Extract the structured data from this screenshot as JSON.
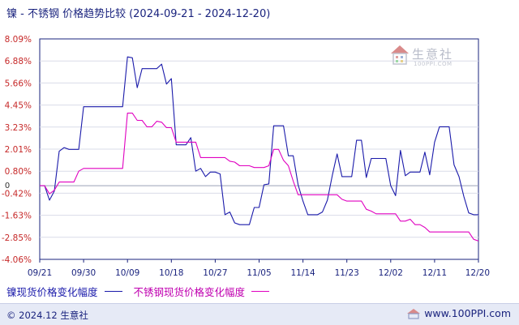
{
  "title": {
    "main": "镍 - 不锈钢 价格趋势比较",
    "range": "(2024-09-21 - 2024-12-20)"
  },
  "legend": [
    {
      "label": "镍现货价格变化幅度",
      "color": "#1a1aaa"
    },
    {
      "label": "不锈钢现货价格变化幅度",
      "color": "#e000c0"
    }
  ],
  "footer": {
    "copyright": "© 2024.12 生意社",
    "site": "www.100PPI.com"
  },
  "watermark": {
    "text": "生意社",
    "sub": "100PPI.COM"
  },
  "chart_data": {
    "type": "line",
    "x": [
      "2024-09-21",
      "2024-09-22",
      "2024-09-23",
      "2024-09-24",
      "2024-09-25",
      "2024-09-26",
      "2024-09-27",
      "2024-09-28",
      "2024-09-29",
      "2024-09-30",
      "2024-10-01",
      "2024-10-02",
      "2024-10-03",
      "2024-10-04",
      "2024-10-05",
      "2024-10-06",
      "2024-10-07",
      "2024-10-08",
      "2024-10-09",
      "2024-10-10",
      "2024-10-11",
      "2024-10-12",
      "2024-10-13",
      "2024-10-14",
      "2024-10-15",
      "2024-10-16",
      "2024-10-17",
      "2024-10-18",
      "2024-10-19",
      "2024-10-20",
      "2024-10-21",
      "2024-10-22",
      "2024-10-23",
      "2024-10-24",
      "2024-10-25",
      "2024-10-26",
      "2024-10-27",
      "2024-10-28",
      "2024-10-29",
      "2024-10-30",
      "2024-10-31",
      "2024-11-01",
      "2024-11-02",
      "2024-11-03",
      "2024-11-04",
      "2024-11-05",
      "2024-11-06",
      "2024-11-07",
      "2024-11-08",
      "2024-11-09",
      "2024-11-10",
      "2024-11-11",
      "2024-11-12",
      "2024-11-13",
      "2024-11-14",
      "2024-11-15",
      "2024-11-16",
      "2024-11-17",
      "2024-11-18",
      "2024-11-19",
      "2024-11-20",
      "2024-11-21",
      "2024-11-22",
      "2024-11-23",
      "2024-11-24",
      "2024-11-25",
      "2024-11-26",
      "2024-11-27",
      "2024-11-28",
      "2024-11-29",
      "2024-11-30",
      "2024-12-01",
      "2024-12-02",
      "2024-12-03",
      "2024-12-04",
      "2024-12-05",
      "2024-12-06",
      "2024-12-07",
      "2024-12-08",
      "2024-12-09",
      "2024-12-10",
      "2024-12-11",
      "2024-12-12",
      "2024-12-13",
      "2024-12-14",
      "2024-12-15",
      "2024-12-16",
      "2024-12-17",
      "2024-12-18",
      "2024-12-19",
      "2024-12-20"
    ],
    "series": [
      {
        "name": "镍现货价格变化幅度",
        "color": "#1a1aaa",
        "values": [
          0.0,
          0.0,
          -0.8,
          -0.3,
          1.9,
          2.1,
          2.0,
          2.0,
          2.0,
          4.35,
          4.35,
          4.35,
          4.35,
          4.35,
          4.35,
          4.35,
          4.35,
          4.35,
          7.1,
          7.05,
          5.4,
          6.45,
          6.45,
          6.45,
          6.45,
          6.7,
          5.6,
          5.9,
          2.25,
          2.25,
          2.25,
          2.65,
          0.8,
          0.95,
          0.5,
          0.75,
          0.75,
          0.65,
          -1.6,
          -1.45,
          -2.05,
          -2.15,
          -2.15,
          -2.15,
          -1.2,
          -1.2,
          0.05,
          0.1,
          3.3,
          3.3,
          3.3,
          1.65,
          1.65,
          0.05,
          -0.85,
          -1.6,
          -1.6,
          -1.6,
          -1.45,
          -0.8,
          0.55,
          1.75,
          0.5,
          0.5,
          0.5,
          2.5,
          2.5,
          0.45,
          1.5,
          1.5,
          1.5,
          1.5,
          0.0,
          -0.55,
          1.95,
          0.55,
          0.75,
          0.75,
          0.75,
          1.85,
          0.6,
          2.4,
          3.25,
          3.25,
          3.25,
          1.15,
          0.5,
          -0.6,
          -1.5,
          -1.6,
          -1.6
        ]
      },
      {
        "name": "不锈钢现货价格变化幅度",
        "color": "#e000c0",
        "values": [
          0.0,
          0.0,
          -0.45,
          -0.25,
          0.2,
          0.2,
          0.2,
          0.2,
          0.8,
          0.95,
          0.95,
          0.95,
          0.95,
          0.95,
          0.95,
          0.95,
          0.95,
          0.95,
          4.0,
          4.0,
          3.6,
          3.6,
          3.25,
          3.25,
          3.55,
          3.5,
          3.2,
          3.2,
          2.4,
          2.4,
          2.4,
          2.4,
          2.4,
          1.55,
          1.55,
          1.55,
          1.55,
          1.55,
          1.55,
          1.35,
          1.3,
          1.1,
          1.1,
          1.1,
          1.0,
          1.0,
          1.0,
          1.1,
          2.0,
          2.0,
          1.4,
          1.1,
          0.25,
          -0.5,
          -0.5,
          -0.5,
          -0.5,
          -0.5,
          -0.5,
          -0.5,
          -0.5,
          -0.5,
          -0.75,
          -0.85,
          -0.85,
          -0.85,
          -0.85,
          -1.3,
          -1.4,
          -1.55,
          -1.55,
          -1.55,
          -1.55,
          -1.55,
          -1.95,
          -1.95,
          -1.85,
          -2.15,
          -2.15,
          -2.3,
          -2.55,
          -2.55,
          -2.55,
          -2.55,
          -2.55,
          -2.55,
          -2.55,
          -2.55,
          -2.55,
          -2.95,
          -3.05
        ]
      }
    ],
    "x_ticks": [
      "09/21",
      "09/30",
      "10/09",
      "10/18",
      "10/27",
      "11/05",
      "11/14",
      "11/23",
      "12/02",
      "12/11",
      "12/20"
    ],
    "y_ticks": [
      "8.09%",
      "6.88%",
      "5.66%",
      "4.45%",
      "3.23%",
      "2.01%",
      "0.80%",
      "-0.42%",
      "-1.63%",
      "-2.85%",
      "-4.06%"
    ],
    "ylim": [
      -4.06,
      8.09
    ],
    "zero_label": "0",
    "grid": "horizontal"
  }
}
